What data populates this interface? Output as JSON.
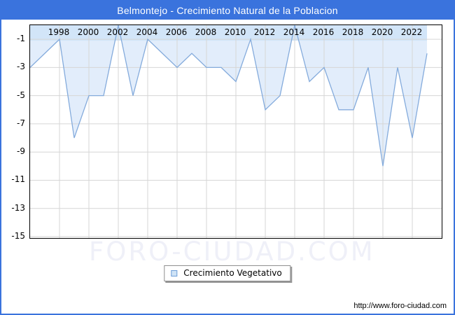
{
  "header": {
    "title": "Belmontejo - Crecimiento Natural de la Poblacion"
  },
  "legend": {
    "label": "Crecimiento Vegetativo"
  },
  "watermark": {
    "text": "FORO-CIUDAD.COM"
  },
  "footer": {
    "url": "http://www.foro-ciudad.com"
  },
  "colors": {
    "frame_blue": "#3a73dd",
    "title_text": "#ffffff",
    "axis_strip": "#d2e5f8",
    "area_fill": "#e2edfb",
    "series_line": "#84abdc",
    "gridline": "#d6d6d6",
    "plot_border": "#000000",
    "watermark_text": "#eff0f8",
    "legend_swatch_fill": "#cfe3f6",
    "legend_swatch_border": "#6f9fd8"
  },
  "chart_data": {
    "type": "area",
    "title": "Belmontejo - Crecimiento Natural de la Poblacion",
    "xlabel": "",
    "ylabel": "",
    "x": [
      1996,
      1997,
      1998,
      1999,
      2000,
      2001,
      2002,
      2003,
      2004,
      2005,
      2006,
      2007,
      2008,
      2009,
      2010,
      2011,
      2012,
      2013,
      2014,
      2015,
      2016,
      2017,
      2018,
      2019,
      2020,
      2021,
      2022,
      2023
    ],
    "series": [
      {
        "name": "Crecimiento Vegetativo",
        "values": [
          -3,
          -2,
          -1,
          -8,
          -5,
          -5,
          0,
          -5,
          -1,
          -2,
          -3,
          -2,
          -3,
          -3,
          -4,
          -1,
          -6,
          -5,
          0,
          -4,
          -3,
          -6,
          -6,
          -3,
          -10,
          -3,
          -8,
          -2
        ]
      }
    ],
    "xlim": [
      1996,
      2024
    ],
    "ylim": [
      -15.1,
      0
    ],
    "x_ticks": [
      1998,
      2000,
      2002,
      2004,
      2006,
      2008,
      2010,
      2012,
      2014,
      2016,
      2018,
      2020,
      2022
    ],
    "y_ticks": [
      -1,
      -3,
      -5,
      -7,
      -9,
      -11,
      -13,
      -15
    ],
    "grid": true,
    "x_tick_position": "top-inside",
    "legend_position": "bottom-center"
  }
}
